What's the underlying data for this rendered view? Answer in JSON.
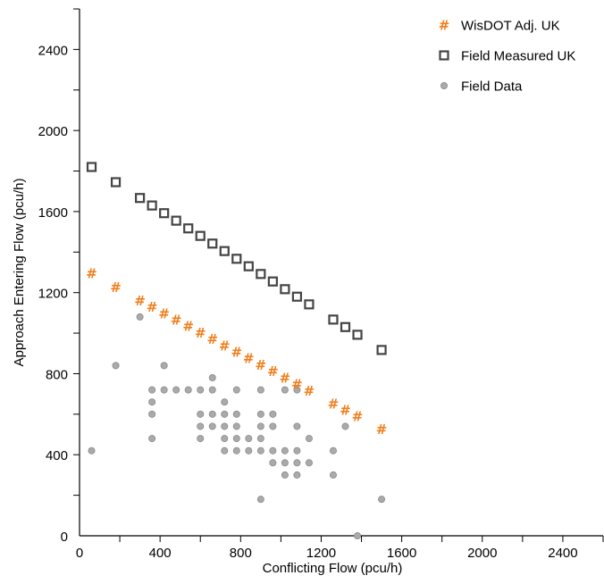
{
  "chart_data": {
    "type": "scatter",
    "title": "",
    "xlabel": "Conflicting Flow (pcu/h)",
    "ylabel": "Approach Entering Flow (pcu/h)",
    "xlim": [
      0,
      2600
    ],
    "ylim": [
      0,
      2600
    ],
    "xticks": [
      0,
      400,
      800,
      1200,
      1600,
      2000,
      2400
    ],
    "yticks": [
      0,
      400,
      800,
      1200,
      1600,
      2000,
      2400
    ],
    "grid": false,
    "legend_position": "top-right",
    "series": [
      {
        "name": "WisDOT Adj. UK",
        "marker": "#",
        "color": "#f07f1d",
        "points": [
          [
            60,
            1295
          ],
          [
            180,
            1228
          ],
          [
            300,
            1162
          ],
          [
            360,
            1130
          ],
          [
            420,
            1098
          ],
          [
            480,
            1066
          ],
          [
            540,
            1035
          ],
          [
            600,
            1003
          ],
          [
            660,
            971
          ],
          [
            720,
            939
          ],
          [
            780,
            908
          ],
          [
            840,
            876
          ],
          [
            900,
            844
          ],
          [
            960,
            812
          ],
          [
            1020,
            780
          ],
          [
            1080,
            749
          ],
          [
            1140,
            717
          ],
          [
            1260,
            653
          ],
          [
            1320,
            621
          ],
          [
            1380,
            590
          ],
          [
            1500,
            526
          ]
        ]
      },
      {
        "name": "Field Measured UK",
        "marker": "square",
        "color": "#444444",
        "points": [
          [
            60,
            1820
          ],
          [
            180,
            1745
          ],
          [
            300,
            1667
          ],
          [
            360,
            1630
          ],
          [
            420,
            1592
          ],
          [
            480,
            1555
          ],
          [
            540,
            1517
          ],
          [
            600,
            1480
          ],
          [
            660,
            1442
          ],
          [
            720,
            1405
          ],
          [
            780,
            1367
          ],
          [
            840,
            1330
          ],
          [
            900,
            1292
          ],
          [
            960,
            1255
          ],
          [
            1020,
            1217
          ],
          [
            1080,
            1180
          ],
          [
            1140,
            1142
          ],
          [
            1260,
            1067
          ],
          [
            1320,
            1030
          ],
          [
            1380,
            992
          ],
          [
            1500,
            917
          ]
        ]
      },
      {
        "name": "Field Data",
        "marker": "circle",
        "color": "#aaaaaa",
        "points": [
          [
            60,
            420
          ],
          [
            180,
            840
          ],
          [
            300,
            1080
          ],
          [
            360,
            720
          ],
          [
            360,
            660
          ],
          [
            360,
            600
          ],
          [
            360,
            480
          ],
          [
            420,
            840
          ],
          [
            420,
            720
          ],
          [
            480,
            720
          ],
          [
            540,
            720
          ],
          [
            600,
            720
          ],
          [
            600,
            600
          ],
          [
            600,
            540
          ],
          [
            600,
            480
          ],
          [
            660,
            780
          ],
          [
            660,
            720
          ],
          [
            660,
            600
          ],
          [
            660,
            540
          ],
          [
            720,
            660
          ],
          [
            720,
            600
          ],
          [
            720,
            540
          ],
          [
            720,
            480
          ],
          [
            720,
            420
          ],
          [
            780,
            720
          ],
          [
            780,
            600
          ],
          [
            780,
            540
          ],
          [
            780,
            480
          ],
          [
            780,
            420
          ],
          [
            840,
            480
          ],
          [
            840,
            420
          ],
          [
            900,
            720
          ],
          [
            900,
            600
          ],
          [
            900,
            540
          ],
          [
            900,
            480
          ],
          [
            900,
            420
          ],
          [
            900,
            180
          ],
          [
            960,
            600
          ],
          [
            960,
            540
          ],
          [
            960,
            420
          ],
          [
            960,
            360
          ],
          [
            1020,
            720
          ],
          [
            1020,
            420
          ],
          [
            1020,
            360
          ],
          [
            1020,
            300
          ],
          [
            1080,
            720
          ],
          [
            1080,
            540
          ],
          [
            1080,
            420
          ],
          [
            1080,
            360
          ],
          [
            1080,
            300
          ],
          [
            1140,
            480
          ],
          [
            1140,
            360
          ],
          [
            1260,
            420
          ],
          [
            1260,
            300
          ],
          [
            1320,
            540
          ],
          [
            1380,
            0
          ],
          [
            1500,
            180
          ]
        ]
      }
    ]
  }
}
